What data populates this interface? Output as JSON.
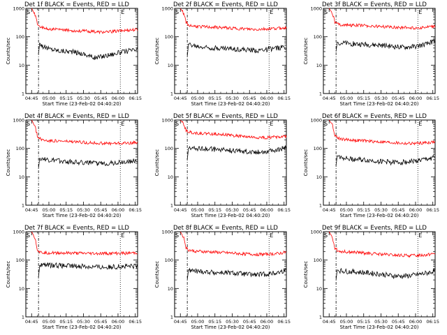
{
  "figure": {
    "title_suffix": "BLACK = Events, RED = LLD",
    "xlabel": "Start Time (23-Feb-02 04:40:20)",
    "ylabel": "Counts/sec",
    "y_tick_labels": [
      "1",
      "10",
      "100",
      "1000"
    ],
    "x_tick_labels": [
      "04:45",
      "05:00",
      "05:15",
      "05:30",
      "05:45",
      "06:00",
      "06:15"
    ],
    "start_marker": "S",
    "end_marker": "E",
    "colors": {
      "events": "#000000",
      "lld": "#ff0000",
      "axes": "#000000"
    }
  },
  "chart_data": [
    {
      "type": "line",
      "title": "Det 1f BLACK = Events, RED = LLD",
      "xlabel": "Start Time (23-Feb-02 04:40:20)",
      "ylabel": "Counts/sec",
      "y_scale": "log",
      "ylim": [
        1,
        1000
      ],
      "x_ticks": [
        "04:45",
        "05:00",
        "05:15",
        "05:30",
        "05:45",
        "06:00",
        "06:15"
      ],
      "x_range": [
        "04:40",
        "06:17"
      ],
      "markers": {
        "S": "04:51",
        "E": "06:02"
      },
      "series": [
        {
          "name": "Events",
          "color": "#000000",
          "x": [
            "04:51",
            "04:52",
            "04:55",
            "05:00",
            "05:10",
            "05:20",
            "05:30",
            "05:40",
            "05:50",
            "06:00",
            "06:10",
            "06:17"
          ],
          "y": [
            25,
            60,
            45,
            38,
            32,
            30,
            25,
            18,
            22,
            27,
            32,
            35
          ]
        },
        {
          "name": "LLD",
          "color": "#ff0000",
          "x": [
            "04:45",
            "04:48",
            "04:50",
            "04:52",
            "04:55",
            "05:00",
            "05:10",
            "05:20",
            "05:30",
            "05:40",
            "05:50",
            "06:00",
            "06:10",
            "06:17"
          ],
          "y": [
            1000,
            600,
            300,
            230,
            200,
            190,
            175,
            165,
            160,
            150,
            145,
            160,
            175,
            180
          ]
        }
      ]
    },
    {
      "type": "line",
      "title": "Det 2f BLACK = Events, RED = LLD",
      "xlabel": "Start Time (23-Feb-02 04:40:20)",
      "ylabel": "Counts/sec",
      "y_scale": "log",
      "ylim": [
        1,
        1000
      ],
      "x_ticks": [
        "04:45",
        "05:00",
        "05:15",
        "05:30",
        "05:45",
        "06:00",
        "06:15"
      ],
      "x_range": [
        "04:40",
        "06:17"
      ],
      "markers": {
        "S": "04:51",
        "E": "06:02"
      },
      "series": [
        {
          "name": "Events",
          "color": "#000000",
          "x": [
            "04:51",
            "04:52",
            "04:55",
            "05:00",
            "05:10",
            "05:20",
            "05:30",
            "05:40",
            "05:50",
            "06:00",
            "06:10",
            "06:17"
          ],
          "y": [
            20,
            55,
            50,
            45,
            42,
            40,
            38,
            35,
            33,
            36,
            40,
            45
          ]
        },
        {
          "name": "LLD",
          "color": "#ff0000",
          "x": [
            "04:45",
            "04:48",
            "04:50",
            "04:52",
            "04:55",
            "05:00",
            "05:10",
            "05:20",
            "05:30",
            "05:40",
            "05:50",
            "06:00",
            "06:10",
            "06:17"
          ],
          "y": [
            1000,
            650,
            320,
            260,
            240,
            230,
            220,
            210,
            200,
            190,
            180,
            190,
            200,
            210
          ]
        }
      ]
    },
    {
      "type": "line",
      "title": "Det 3f BLACK = Events, RED = LLD",
      "xlabel": "Start Time (23-Feb-02 04:40:20)",
      "ylabel": "Counts/sec",
      "y_scale": "log",
      "ylim": [
        1,
        1000
      ],
      "x_ticks": [
        "04:45",
        "05:00",
        "05:15",
        "05:30",
        "05:45",
        "06:00",
        "06:15"
      ],
      "x_range": [
        "04:40",
        "06:17"
      ],
      "markers": {
        "S": "04:51",
        "E": "06:02"
      },
      "series": [
        {
          "name": "Events",
          "color": "#000000",
          "x": [
            "04:51",
            "04:52",
            "04:55",
            "05:00",
            "05:10",
            "05:20",
            "05:30",
            "05:40",
            "05:50",
            "06:00",
            "06:10",
            "06:17"
          ],
          "y": [
            30,
            65,
            60,
            58,
            55,
            52,
            50,
            45,
            42,
            45,
            55,
            75
          ]
        },
        {
          "name": "LLD",
          "color": "#ff0000",
          "x": [
            "04:45",
            "04:48",
            "04:50",
            "04:52",
            "04:55",
            "05:00",
            "05:10",
            "05:20",
            "05:30",
            "05:40",
            "05:50",
            "06:00",
            "06:10",
            "06:17"
          ],
          "y": [
            1000,
            650,
            330,
            290,
            270,
            260,
            250,
            240,
            230,
            220,
            210,
            205,
            215,
            230
          ]
        }
      ]
    },
    {
      "type": "line",
      "title": "Det 4f BLACK = Events, RED = LLD",
      "xlabel": "Start Time (23-Feb-02 04:40:20)",
      "ylabel": "Counts/sec",
      "y_scale": "log",
      "ylim": [
        1,
        1000
      ],
      "x_ticks": [
        "04:45",
        "05:00",
        "05:15",
        "05:30",
        "05:45",
        "06:00",
        "06:15"
      ],
      "x_range": [
        "04:40",
        "06:17"
      ],
      "markers": {
        "S": "04:51",
        "E": "06:02"
      },
      "series": [
        {
          "name": "Events",
          "color": "#000000",
          "x": [
            "04:51",
            "04:52",
            "04:55",
            "05:00",
            "05:10",
            "05:20",
            "05:30",
            "05:40",
            "05:50",
            "06:00",
            "06:10",
            "06:17"
          ],
          "y": [
            20,
            45,
            42,
            38,
            36,
            34,
            32,
            30,
            30,
            32,
            35,
            38
          ]
        },
        {
          "name": "LLD",
          "color": "#ff0000",
          "x": [
            "04:45",
            "04:48",
            "04:50",
            "04:52",
            "04:55",
            "05:00",
            "05:10",
            "05:20",
            "05:30",
            "05:40",
            "05:50",
            "06:00",
            "06:10",
            "06:17"
          ],
          "y": [
            1000,
            600,
            280,
            220,
            200,
            190,
            180,
            170,
            165,
            155,
            150,
            150,
            155,
            165
          ]
        }
      ]
    },
    {
      "type": "line",
      "title": "Det 5f BLACK = Events, RED = LLD",
      "xlabel": "Start Time (23-Feb-02 04:40:20)",
      "ylabel": "Counts/sec",
      "y_scale": "log",
      "ylim": [
        1,
        1000
      ],
      "x_ticks": [
        "04:45",
        "05:00",
        "05:15",
        "05:30",
        "05:45",
        "06:00",
        "06:15"
      ],
      "x_range": [
        "04:40",
        "06:17"
      ],
      "markers": {
        "S": "04:51",
        "E": "06:02"
      },
      "series": [
        {
          "name": "Events",
          "color": "#000000",
          "x": [
            "04:51",
            "04:52",
            "04:55",
            "05:00",
            "05:10",
            "05:20",
            "05:30",
            "05:40",
            "05:50",
            "06:00",
            "06:10",
            "06:17"
          ],
          "y": [
            40,
            100,
            105,
            100,
            95,
            90,
            85,
            80,
            75,
            80,
            90,
            110
          ]
        },
        {
          "name": "LLD",
          "color": "#ff0000",
          "x": [
            "04:45",
            "04:48",
            "04:50",
            "04:52",
            "04:55",
            "05:00",
            "05:10",
            "05:20",
            "05:30",
            "05:40",
            "05:50",
            "06:00",
            "06:10",
            "06:17"
          ],
          "y": [
            1000,
            700,
            420,
            380,
            360,
            340,
            330,
            320,
            290,
            260,
            240,
            240,
            255,
            270
          ]
        }
      ]
    },
    {
      "type": "line",
      "title": "Det 6f BLACK = Events, RED = LLD",
      "xlabel": "Start Time (23-Feb-02 04:40:20)",
      "ylabel": "Counts/sec",
      "y_scale": "log",
      "ylim": [
        1,
        1000
      ],
      "x_ticks": [
        "04:45",
        "05:00",
        "05:15",
        "05:30",
        "05:45",
        "06:00",
        "06:15"
      ],
      "x_range": [
        "04:40",
        "06:17"
      ],
      "markers": {
        "S": "04:51",
        "E": "06:02"
      },
      "series": [
        {
          "name": "Events",
          "color": "#000000",
          "x": [
            "04:51",
            "04:52",
            "04:55",
            "05:00",
            "05:10",
            "05:20",
            "05:30",
            "05:40",
            "05:50",
            "06:00",
            "06:10",
            "06:17"
          ],
          "y": [
            25,
            55,
            50,
            45,
            40,
            38,
            35,
            32,
            33,
            36,
            42,
            50
          ]
        },
        {
          "name": "LLD",
          "color": "#ff0000",
          "x": [
            "04:45",
            "04:48",
            "04:50",
            "04:52",
            "04:55",
            "05:00",
            "05:10",
            "05:20",
            "05:30",
            "05:40",
            "05:50",
            "06:00",
            "06:10",
            "06:17"
          ],
          "y": [
            1000,
            650,
            300,
            240,
            220,
            205,
            190,
            180,
            170,
            160,
            150,
            150,
            160,
            170
          ]
        }
      ]
    },
    {
      "type": "line",
      "title": "Det 7f BLACK = Events, RED = LLD",
      "xlabel": "Start Time (23-Feb-02 04:40:20)",
      "ylabel": "Counts/sec",
      "y_scale": "log",
      "ylim": [
        1,
        1000
      ],
      "x_ticks": [
        "04:45",
        "05:00",
        "05:15",
        "05:30",
        "05:45",
        "06:00",
        "06:15"
      ],
      "x_range": [
        "04:40",
        "06:17"
      ],
      "markers": {
        "S": "04:51",
        "E": "06:02"
      },
      "series": [
        {
          "name": "Events",
          "color": "#000000",
          "x": [
            "04:51",
            "04:52",
            "04:55",
            "05:00",
            "05:10",
            "05:20",
            "05:30",
            "05:40",
            "05:50",
            "06:00",
            "06:10",
            "06:17"
          ],
          "y": [
            25,
            65,
            68,
            66,
            64,
            62,
            60,
            58,
            56,
            58,
            60,
            62
          ]
        },
        {
          "name": "LLD",
          "color": "#ff0000",
          "x": [
            "04:45",
            "04:48",
            "04:50",
            "04:52",
            "04:55",
            "05:00",
            "05:10",
            "05:20",
            "05:30",
            "05:40",
            "05:50",
            "06:00",
            "06:10",
            "06:17"
          ],
          "y": [
            1000,
            600,
            240,
            190,
            185,
            180,
            178,
            175,
            172,
            170,
            170,
            172,
            175,
            180
          ]
        }
      ]
    },
    {
      "type": "line",
      "title": "Det 8f BLACK = Events, RED = LLD",
      "xlabel": "Start Time (23-Feb-02 04:40:20)",
      "ylabel": "Counts/sec",
      "y_scale": "log",
      "ylim": [
        1,
        1000
      ],
      "x_ticks": [
        "04:45",
        "05:00",
        "05:15",
        "05:30",
        "05:45",
        "06:00",
        "06:15"
      ],
      "x_range": [
        "04:40",
        "06:17"
      ],
      "markers": {
        "S": "04:51",
        "E": "06:02"
      },
      "series": [
        {
          "name": "Events",
          "color": "#000000",
          "x": [
            "04:51",
            "04:52",
            "04:55",
            "05:00",
            "05:10",
            "05:20",
            "05:30",
            "05:40",
            "05:50",
            "06:00",
            "06:10",
            "06:17"
          ],
          "y": [
            20,
            45,
            42,
            40,
            38,
            36,
            35,
            32,
            30,
            32,
            36,
            45
          ]
        },
        {
          "name": "LLD",
          "color": "#ff0000",
          "x": [
            "04:45",
            "04:48",
            "04:50",
            "04:52",
            "04:55",
            "05:00",
            "05:10",
            "05:20",
            "05:30",
            "05:40",
            "05:50",
            "06:00",
            "06:10",
            "06:17"
          ],
          "y": [
            1000,
            620,
            270,
            230,
            215,
            205,
            195,
            185,
            175,
            165,
            160,
            160,
            170,
            190
          ]
        }
      ]
    },
    {
      "type": "line",
      "title": "Det 9f BLACK = Events, RED = LLD",
      "xlabel": "Start Time (23-Feb-02 04:40:20)",
      "ylabel": "Counts/sec",
      "y_scale": "log",
      "ylim": [
        1,
        1000
      ],
      "x_ticks": [
        "04:45",
        "05:00",
        "05:15",
        "05:30",
        "05:45",
        "06:00",
        "06:15"
      ],
      "x_range": [
        "04:40",
        "06:17"
      ],
      "markers": {
        "S": "04:51",
        "E": "06:02"
      },
      "series": [
        {
          "name": "Events",
          "color": "#000000",
          "x": [
            "04:51",
            "04:52",
            "04:55",
            "05:00",
            "05:10",
            "05:20",
            "05:30",
            "05:40",
            "05:50",
            "06:00",
            "06:10",
            "06:17"
          ],
          "y": [
            20,
            45,
            42,
            40,
            38,
            35,
            32,
            28,
            27,
            30,
            35,
            42
          ]
        },
        {
          "name": "LLD",
          "color": "#ff0000",
          "x": [
            "04:45",
            "04:48",
            "04:50",
            "04:52",
            "04:55",
            "05:00",
            "05:10",
            "05:20",
            "05:30",
            "05:40",
            "05:50",
            "06:00",
            "06:10",
            "06:17"
          ],
          "y": [
            1000,
            600,
            270,
            220,
            205,
            195,
            185,
            170,
            160,
            150,
            145,
            145,
            155,
            175
          ]
        }
      ]
    }
  ]
}
